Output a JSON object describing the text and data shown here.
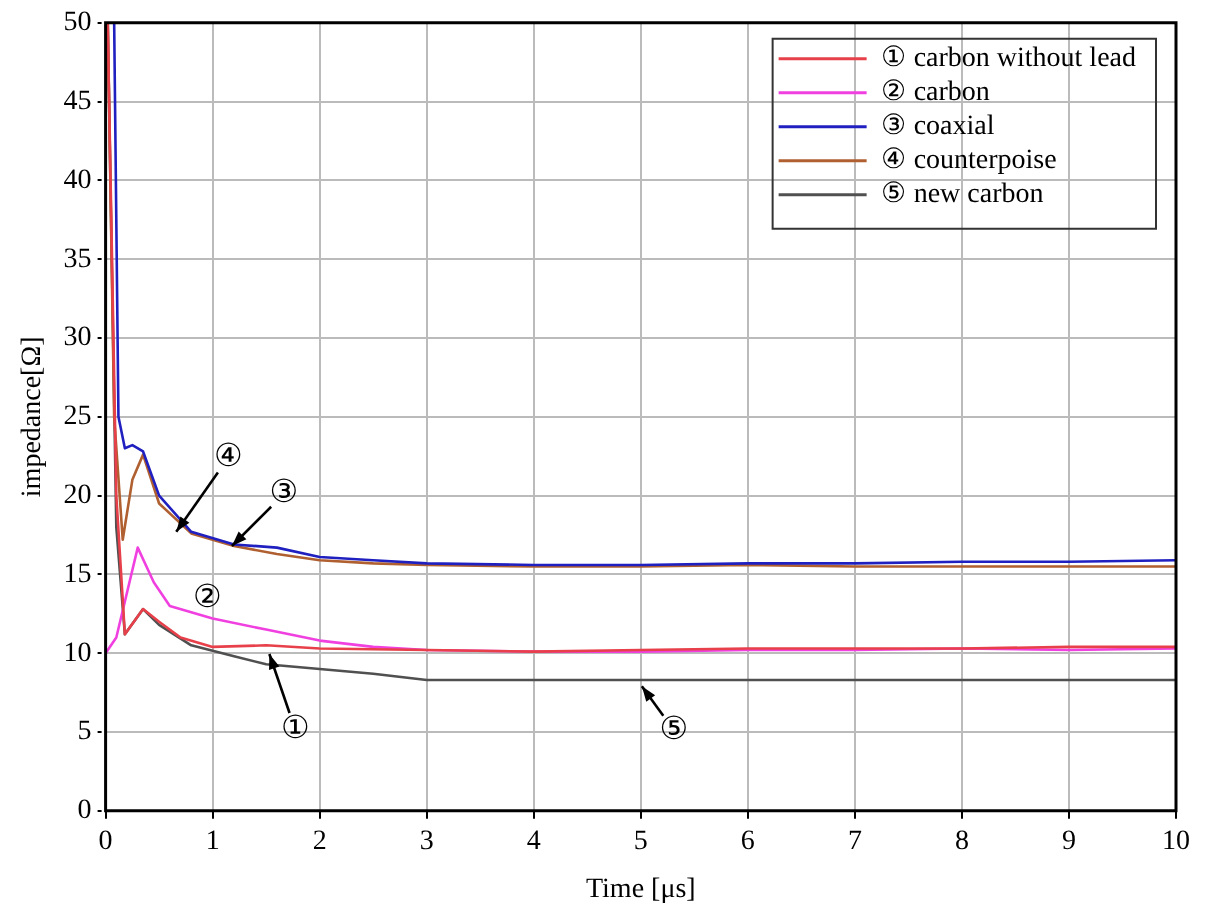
{
  "chart_data": {
    "type": "line",
    "xlabel": "Time [μs]",
    "ylabel": "impedance[Ω]",
    "xlim": [
      0,
      10
    ],
    "xticks": [
      0,
      1,
      2,
      3,
      4,
      5,
      6,
      7,
      8,
      9,
      10
    ],
    "ylim": [
      0,
      50
    ],
    "yticks": [
      0,
      5,
      10,
      15,
      20,
      25,
      30,
      35,
      40,
      45,
      50
    ],
    "grid": true,
    "legend": "top right",
    "marker": "none",
    "line_style": "solid",
    "series": [
      {
        "name": "① carbon without lead",
        "color": "#e8404a",
        "x": [
          0.02,
          0.1,
          0.18,
          0.35,
          0.5,
          0.7,
          1.0,
          1.5,
          2.0,
          3,
          4,
          5,
          6,
          7,
          8,
          9,
          10
        ],
        "values": [
          50,
          20,
          11.2,
          12.8,
          12,
          11,
          10.4,
          10.5,
          10.3,
          10.2,
          10.1,
          10.2,
          10.3,
          10.3,
          10.3,
          10.4,
          10.4
        ]
      },
      {
        "name": "② carbon",
        "color": "#f040e0",
        "x": [
          0,
          0.1,
          0.3,
          0.45,
          0.6,
          1.0,
          1.5,
          2.0,
          2.5,
          3,
          4,
          5,
          6,
          7,
          8,
          9,
          10
        ],
        "values": [
          10,
          11,
          16.7,
          14.5,
          13,
          12.2,
          11.5,
          10.8,
          10.4,
          10.2,
          10.1,
          10.1,
          10.2,
          10.2,
          10.3,
          10.2,
          10.3
        ]
      },
      {
        "name": "③ coaxial",
        "color": "#2020c0",
        "x": [
          0.08,
          0.12,
          0.18,
          0.25,
          0.35,
          0.5,
          0.8,
          1.2,
          1.6,
          2.0,
          2.5,
          3,
          4,
          5,
          6,
          7,
          8,
          9,
          10
        ],
        "values": [
          50,
          25,
          23,
          23.2,
          22.8,
          20,
          17.7,
          16.9,
          16.7,
          16.1,
          15.9,
          15.7,
          15.6,
          15.6,
          15.7,
          15.7,
          15.8,
          15.8,
          15.9
        ]
      },
      {
        "name": "④ counterpoise",
        "color": "#b06030",
        "x": [
          0.02,
          0.08,
          0.16,
          0.25,
          0.35,
          0.5,
          0.8,
          1.2,
          1.6,
          2.0,
          2.5,
          3,
          4,
          5,
          6,
          7,
          8,
          9,
          10
        ],
        "values": [
          50,
          25,
          17.2,
          21,
          22.6,
          19.5,
          17.6,
          16.8,
          16.3,
          15.9,
          15.7,
          15.6,
          15.5,
          15.5,
          15.6,
          15.5,
          15.5,
          15.5,
          15.5
        ]
      },
      {
        "name": "⑤ new carbon",
        "color": "#505050",
        "x": [
          0.02,
          0.1,
          0.18,
          0.35,
          0.5,
          0.8,
          1.2,
          1.5,
          2.0,
          2.5,
          3,
          4,
          5,
          6,
          7,
          8,
          9,
          10
        ],
        "values": [
          50,
          18,
          11.2,
          12.8,
          11.8,
          10.5,
          9.8,
          9.3,
          9.0,
          8.7,
          8.3,
          8.3,
          8.3,
          8.3,
          8.3,
          8.3,
          8.3,
          8.3
        ]
      }
    ],
    "annotations": [
      {
        "text": "①",
        "x": 1.53,
        "y": 9.95
      },
      {
        "text": "②",
        "x": 0.95,
        "y": 12.2
      },
      {
        "text": "③",
        "x": 1.18,
        "y": 16.8
      },
      {
        "text": "④",
        "x": 0.66,
        "y": 17.7
      },
      {
        "text": "⑤",
        "x": 5.01,
        "y": 7.9
      }
    ]
  }
}
